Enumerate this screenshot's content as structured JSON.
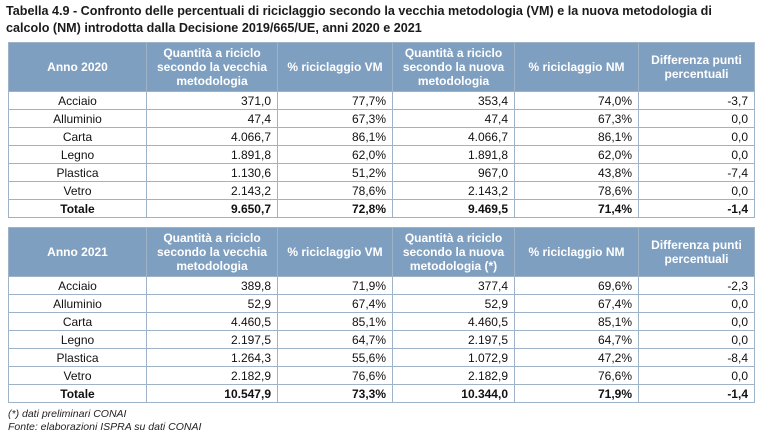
{
  "title": "Tabella 4.9 - Confronto delle percentuali di riciclaggio secondo la vecchia metodologia (VM) e la nuova metodologia di calcolo (NM) introdotta dalla Decisione 2019/665/UE, anni 2020 e 2021",
  "tables": [
    {
      "headers": [
        "Anno 2020",
        "Quantità a riciclo secondo la vecchia metodologia",
        "% riciclaggio VM",
        "Quantità a riciclo secondo la nuova metodologia",
        "% riciclaggio NM",
        "Differenza punti percentuali"
      ],
      "rows": [
        [
          "Acciaio",
          "371,0",
          "77,7%",
          "353,4",
          "74,0%",
          "-3,7"
        ],
        [
          "Alluminio",
          "47,4",
          "67,3%",
          "47,4",
          "67,3%",
          "0,0"
        ],
        [
          "Carta",
          "4.066,7",
          "86,1%",
          "4.066,7",
          "86,1%",
          "0,0"
        ],
        [
          "Legno",
          "1.891,8",
          "62,0%",
          "1.891,8",
          "62,0%",
          "0,0"
        ],
        [
          "Plastica",
          "1.130,6",
          "51,2%",
          "967,0",
          "43,8%",
          "-7,4"
        ],
        [
          "Vetro",
          "2.143,2",
          "78,6%",
          "2.143,2",
          "78,6%",
          "0,0"
        ]
      ],
      "total": [
        "Totale",
        "9.650,7",
        "72,8%",
        "9.469,5",
        "71,4%",
        "-1,4"
      ]
    },
    {
      "headers": [
        "Anno 2021",
        "Quantità a riciclo secondo la vecchia metodologia",
        "% riciclaggio VM",
        "Quantità a riciclo secondo la nuova metodologia (*)",
        "% riciclaggio NM",
        "Differenza punti percentuali"
      ],
      "rows": [
        [
          "Acciaio",
          "389,8",
          "71,9%",
          "377,4",
          "69,6%",
          "-2,3"
        ],
        [
          "Alluminio",
          "52,9",
          "67,4%",
          "52,9",
          "67,4%",
          "0,0"
        ],
        [
          "Carta",
          "4.460,5",
          "85,1%",
          "4.460,5",
          "85,1%",
          "0,0"
        ],
        [
          "Legno",
          "2.197,5",
          "64,7%",
          "2.197,5",
          "64,7%",
          "0,0"
        ],
        [
          "Plastica",
          "1.264,3",
          "55,6%",
          "1.072,9",
          "47,2%",
          "-8,4"
        ],
        [
          "Vetro",
          "2.182,9",
          "76,6%",
          "2.182,9",
          "76,6%",
          "0,0"
        ]
      ],
      "total": [
        "Totale",
        "10.547,9",
        "73,3%",
        "10.344,0",
        "71,9%",
        "-1,4"
      ]
    }
  ],
  "notes": [
    "(*) dati preliminari CONAI",
    "Fonte: elaborazioni ISPRA su dati CONAI"
  ]
}
